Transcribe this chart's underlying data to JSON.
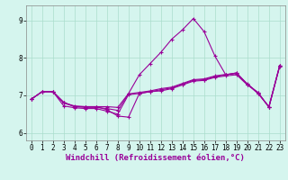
{
  "background_color": "#d5f5ee",
  "line_color": "#990099",
  "x_label": "Windchill (Refroidissement éolien,°C)",
  "ylim": [
    5.8,
    9.4
  ],
  "xlim": [
    -0.5,
    23.5
  ],
  "yticks": [
    6,
    7,
    8,
    9
  ],
  "xticks": [
    0,
    1,
    2,
    3,
    4,
    5,
    6,
    7,
    8,
    9,
    10,
    11,
    12,
    13,
    14,
    15,
    16,
    17,
    18,
    19,
    20,
    21,
    22,
    23
  ],
  "series": [
    [
      6.9,
      7.1,
      7.1,
      6.8,
      6.7,
      6.7,
      6.7,
      6.62,
      6.45,
      6.42,
      7.05,
      7.1,
      7.15,
      7.2,
      7.3,
      7.4,
      7.42,
      7.5,
      7.55,
      7.6,
      7.3,
      7.05,
      6.7,
      7.8
    ],
    [
      6.9,
      7.1,
      7.1,
      6.8,
      6.72,
      6.7,
      6.7,
      6.7,
      6.68,
      7.05,
      7.55,
      7.85,
      8.15,
      8.5,
      8.75,
      9.05,
      8.7,
      8.05,
      7.55,
      7.6,
      7.3,
      7.05,
      6.7,
      7.8
    ],
    [
      6.9,
      7.1,
      7.1,
      6.72,
      6.67,
      6.65,
      6.65,
      6.58,
      6.5,
      7.02,
      7.05,
      7.1,
      7.12,
      7.18,
      7.28,
      7.38,
      7.4,
      7.48,
      7.52,
      7.55,
      7.28,
      7.08,
      6.68,
      7.78
    ],
    [
      6.9,
      7.1,
      7.1,
      6.82,
      6.7,
      6.68,
      6.68,
      6.65,
      6.6,
      7.04,
      7.08,
      7.12,
      7.18,
      7.22,
      7.32,
      7.42,
      7.44,
      7.52,
      7.56,
      7.58,
      7.31,
      7.07,
      6.69,
      7.79
    ]
  ],
  "marker": "+",
  "markersize": 3.0,
  "linewidth": 0.8,
  "grid_color": "#aaddcc",
  "tick_fontsize": 5.5,
  "label_fontsize": 6.5
}
